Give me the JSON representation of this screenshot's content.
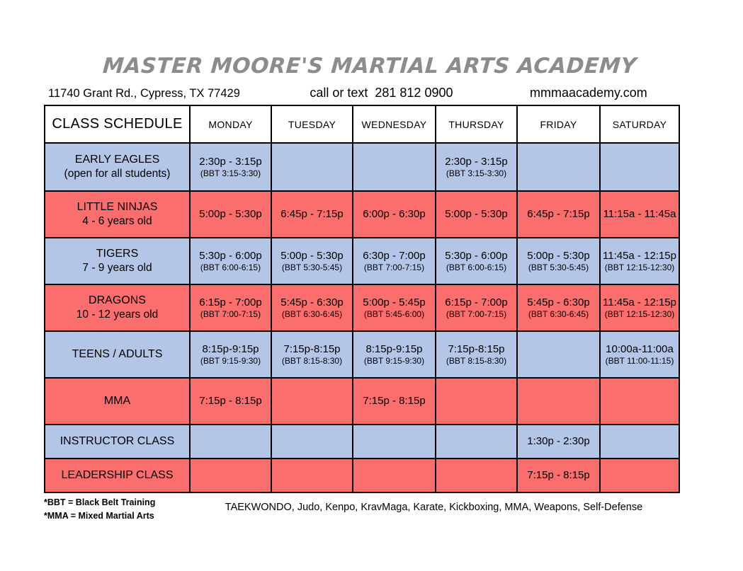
{
  "header": {
    "title": "MASTER MOORE'S MARTIAL ARTS ACADEMY",
    "address": "11740 Grant Rd., Cypress, TX 77429",
    "phone": "call or text  281 812 0900",
    "website": "mmmaacademy.com"
  },
  "table": {
    "columns": [
      "CLASS SCHEDULE",
      "MONDAY",
      "TUESDAY",
      "WEDNESDAY",
      "THURSDAY",
      "FRIDAY",
      "SATURDAY"
    ],
    "rows": [
      {
        "name": "EARLY EAGLES",
        "subtitle": "(open for all students)",
        "tone": "blue",
        "cells": [
          {
            "time": "2:30p - 3:15p",
            "bbt": "(BBT 3:15-3:30)"
          },
          {
            "time": "",
            "bbt": ""
          },
          {
            "time": "",
            "bbt": ""
          },
          {
            "time": "2:30p - 3:15p",
            "bbt": "(BBT 3:15-3:30)"
          },
          {
            "time": "",
            "bbt": ""
          },
          {
            "time": "",
            "bbt": ""
          }
        ]
      },
      {
        "name": "LITTLE NINJAS",
        "subtitle": "4 - 6 years old",
        "tone": "red",
        "cells": [
          {
            "time": "5:00p - 5:30p",
            "bbt": ""
          },
          {
            "time": "6:45p - 7:15p",
            "bbt": ""
          },
          {
            "time": "6:00p - 6:30p",
            "bbt": ""
          },
          {
            "time": "5:00p - 5:30p",
            "bbt": ""
          },
          {
            "time": "6:45p - 7:15p",
            "bbt": ""
          },
          {
            "time": "11:15a - 11:45a",
            "bbt": ""
          }
        ]
      },
      {
        "name": "TIGERS",
        "subtitle": "7 - 9 years old",
        "tone": "blue",
        "cells": [
          {
            "time": "5:30p - 6:00p",
            "bbt": "(BBT 6:00-6:15)"
          },
          {
            "time": "5:00p - 5:30p",
            "bbt": "(BBT 5:30-5:45)"
          },
          {
            "time": "6:30p - 7:00p",
            "bbt": "(BBT 7:00-7:15)"
          },
          {
            "time": "5:30p - 6:00p",
            "bbt": "(BBT 6:00-6:15)"
          },
          {
            "time": "5:00p - 5:30p",
            "bbt": "(BBT 5:30-5:45)"
          },
          {
            "time": "11:45a - 12:15p",
            "bbt": "(BBT 12:15-12:30)"
          }
        ]
      },
      {
        "name": "DRAGONS",
        "subtitle": "10 - 12 years old",
        "tone": "red",
        "cells": [
          {
            "time": "6:15p - 7:00p",
            "bbt": "(BBT 7:00-7:15)"
          },
          {
            "time": "5:45p - 6:30p",
            "bbt": "(BBT 6:30-6:45)"
          },
          {
            "time": "5:00p - 5:45p",
            "bbt": "(BBT 5:45-6:00)"
          },
          {
            "time": "6:15p - 7:00p",
            "bbt": "(BBT 7:00-7:15)"
          },
          {
            "time": "5:45p - 6:30p",
            "bbt": "(BBT 6:30-6:45)"
          },
          {
            "time": "11:45a - 12:15p",
            "bbt": "(BBT 12:15-12:30)"
          }
        ]
      },
      {
        "name": "TEENS / ADULTS",
        "subtitle": "",
        "tone": "blue",
        "cells": [
          {
            "time": "8:15p-9:15p",
            "bbt": "(BBT 9:15-9:30)"
          },
          {
            "time": "7:15p-8:15p",
            "bbt": "(BBT 8:15-8:30)"
          },
          {
            "time": "8:15p-9:15p",
            "bbt": "(BBT 9:15-9:30)"
          },
          {
            "time": "7:15p-8:15p",
            "bbt": "(BBT 8:15-8:30)"
          },
          {
            "time": "",
            "bbt": ""
          },
          {
            "time": "10:00a-11:00a",
            "bbt": "(BBT 11:00-11:15)"
          }
        ]
      },
      {
        "name": "MMA",
        "subtitle": "",
        "tone": "red",
        "cells": [
          {
            "time": "7:15p - 8:15p",
            "bbt": ""
          },
          {
            "time": "",
            "bbt": ""
          },
          {
            "time": "7:15p - 8:15p",
            "bbt": ""
          },
          {
            "time": "",
            "bbt": ""
          },
          {
            "time": "",
            "bbt": ""
          },
          {
            "time": "",
            "bbt": ""
          }
        ]
      },
      {
        "name": "INSTRUCTOR CLASS",
        "subtitle": "",
        "tone": "blue",
        "cells": [
          {
            "time": "",
            "bbt": ""
          },
          {
            "time": "",
            "bbt": ""
          },
          {
            "time": "",
            "bbt": ""
          },
          {
            "time": "",
            "bbt": ""
          },
          {
            "time": "1:30p - 2:30p",
            "bbt": ""
          },
          {
            "time": "",
            "bbt": ""
          }
        ]
      },
      {
        "name": "LEADERSHIP CLASS",
        "subtitle": "",
        "tone": "red",
        "cells": [
          {
            "time": "",
            "bbt": ""
          },
          {
            "time": "",
            "bbt": ""
          },
          {
            "time": "",
            "bbt": ""
          },
          {
            "time": "",
            "bbt": ""
          },
          {
            "time": "7:15p - 8:15p",
            "bbt": ""
          },
          {
            "time": "",
            "bbt": ""
          }
        ]
      }
    ]
  },
  "footer": {
    "note_bbt": "*BBT = Black Belt Training",
    "note_mma": "*MMA = Mixed Martial Arts",
    "disciplines": "TAEKWONDO, Judo, Kenpo, KravMaga, Karate, Kickboxing, MMA, Weapons, Self-Defense"
  },
  "colors": {
    "row_blue": "#B4C6E7",
    "row_red": "#FA6E6E",
    "title_gray": "#8C8C8C",
    "border_black": "#000000"
  }
}
